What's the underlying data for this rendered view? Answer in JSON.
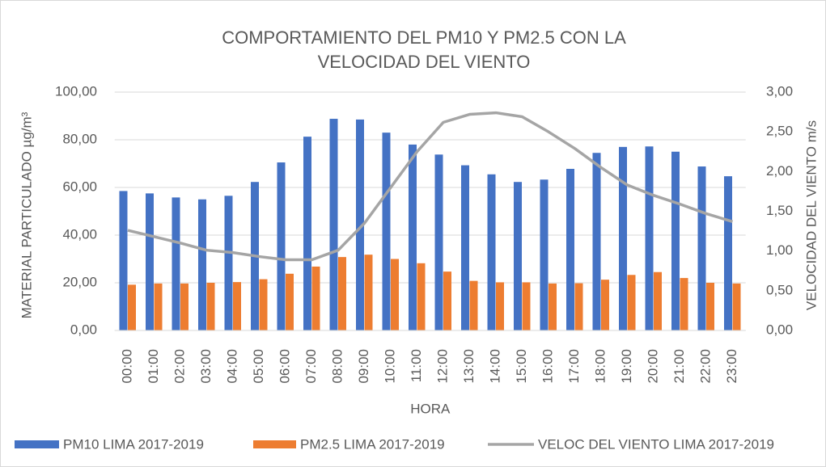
{
  "chart_data": {
    "type": "bar-line",
    "title": "COMPORTAMIENTO DEL PM10 Y PM2.5 CON LA VELOCIDAD DEL VIENTO",
    "xlabel": "HORA",
    "ylabel": "MATERIAL PARTICULADO µg/m³",
    "y2label": "VELOCIDAD DEL VIENTO m/s",
    "categories": [
      "00:00",
      "01:00",
      "02:00",
      "03:00",
      "04:00",
      "05:00",
      "06:00",
      "07:00",
      "08:00",
      "09:00",
      "10:00",
      "11:00",
      "12:00",
      "13:00",
      "14:00",
      "15:00",
      "16:00",
      "17:00",
      "18:00",
      "19:00",
      "20:00",
      "21:00",
      "22:00",
      "23:00"
    ],
    "series": [
      {
        "name": "PM10 LIMA 2017-2019",
        "color": "#4472c4",
        "kind": "bar",
        "values": [
          58.5,
          57.5,
          55.8,
          55,
          56.5,
          62.3,
          70.5,
          81.3,
          88.8,
          88.5,
          83,
          78,
          73.8,
          69.3,
          65.5,
          62.3,
          63.3,
          67.8,
          74.5,
          77,
          77.2,
          75,
          68.8,
          64.7
        ]
      },
      {
        "name": "PM2.5 LIMA 2017-2019",
        "color": "#ed7d31",
        "kind": "bar",
        "values": [
          19.2,
          19.7,
          19.7,
          20,
          20.3,
          21.5,
          23.8,
          26.8,
          30.8,
          31.8,
          30,
          28.2,
          24.7,
          20.8,
          20.2,
          20.2,
          19.7,
          19.8,
          21.3,
          23.3,
          24.5,
          22,
          20,
          19.7
        ]
      },
      {
        "name": "VELOC DEL VIENTO LIMA 2017-2019",
        "color": "#a5a5a5",
        "kind": "line",
        "axis": "y2",
        "values": [
          1.26,
          1.18,
          1.1,
          1.01,
          0.98,
          0.93,
          0.89,
          0.89,
          1.01,
          1.35,
          1.8,
          2.25,
          2.62,
          2.72,
          2.74,
          2.69,
          2.5,
          2.29,
          2.05,
          1.83,
          1.7,
          1.59,
          1.47,
          1.37
        ]
      }
    ],
    "ylim": [
      0,
      100
    ],
    "yticks": [
      {
        "value": 0,
        "label": "0,00"
      },
      {
        "value": 20,
        "label": "20,00"
      },
      {
        "value": 40,
        "label": "40,00"
      },
      {
        "value": 60,
        "label": "60,00"
      },
      {
        "value": 80,
        "label": "80,00"
      },
      {
        "value": 100,
        "label": "100,00"
      }
    ],
    "y2lim": [
      0,
      3
    ],
    "y2ticks": [
      {
        "value": 0,
        "label": "0,00"
      },
      {
        "value": 0.5,
        "label": "0,50"
      },
      {
        "value": 1,
        "label": "1,00"
      },
      {
        "value": 1.5,
        "label": "1,50"
      },
      {
        "value": 2,
        "label": "2,00"
      },
      {
        "value": 2.5,
        "label": "2,50"
      },
      {
        "value": 3,
        "label": "3,00"
      }
    ],
    "grid": true,
    "legend": "bottom"
  }
}
